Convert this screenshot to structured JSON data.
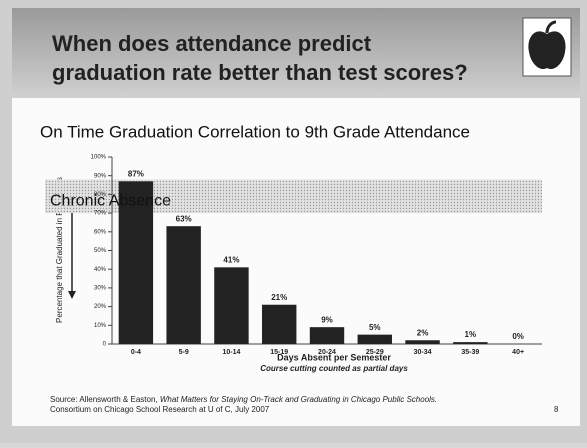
{
  "header": {
    "title_lines": [
      "When does attendance predict",
      "graduation rate better than test scores?"
    ]
  },
  "chart_data": {
    "type": "bar",
    "title": "On Time Graduation Correlation to 9th Grade Attendance",
    "y_label": "Percentage that Graduated in Four Years",
    "x_label": "Days Absent per Semester",
    "x_sublabel": "Course cutting counted as partial days",
    "annotation": {
      "text": "Chronic Absence",
      "range": [
        70,
        88
      ]
    },
    "categories": [
      "0-4",
      "5-9",
      "10-14",
      "15-19",
      "20-24",
      "25-29",
      "30-34",
      "35-39",
      "40+"
    ],
    "values": [
      87,
      63,
      41,
      21,
      9,
      5,
      2,
      1,
      0
    ],
    "value_labels": [
      "87%",
      "63%",
      "41%",
      "21%",
      "9%",
      "5%",
      "2%",
      "1%",
      "0%"
    ],
    "color": "#222222",
    "ylim": [
      0,
      100
    ],
    "yticks": [
      0,
      {
        "value": 10,
        "label": "10%"
      },
      {
        "value": 20,
        "label": "20%"
      },
      {
        "value": 30,
        "label": "30%"
      },
      {
        "value": 40,
        "label": "40%"
      },
      {
        "value": 50,
        "label": "50%"
      },
      {
        "value": 60,
        "label": "60%"
      },
      {
        "value": 70,
        "label": "70%"
      },
      {
        "value": 80,
        "label": "80%"
      },
      {
        "value": 90,
        "label": "90%"
      },
      {
        "value": 100,
        "label": "100%"
      }
    ]
  },
  "footer": {
    "source_prefix": "Source: Allensworth & Easton, ",
    "source_title": "What Matters for Staying On-Track and Graduating in Chicago Public Schools.",
    "source_line2": "Consortium on Chicago School Research at U of C, July 2007",
    "page": "8"
  }
}
